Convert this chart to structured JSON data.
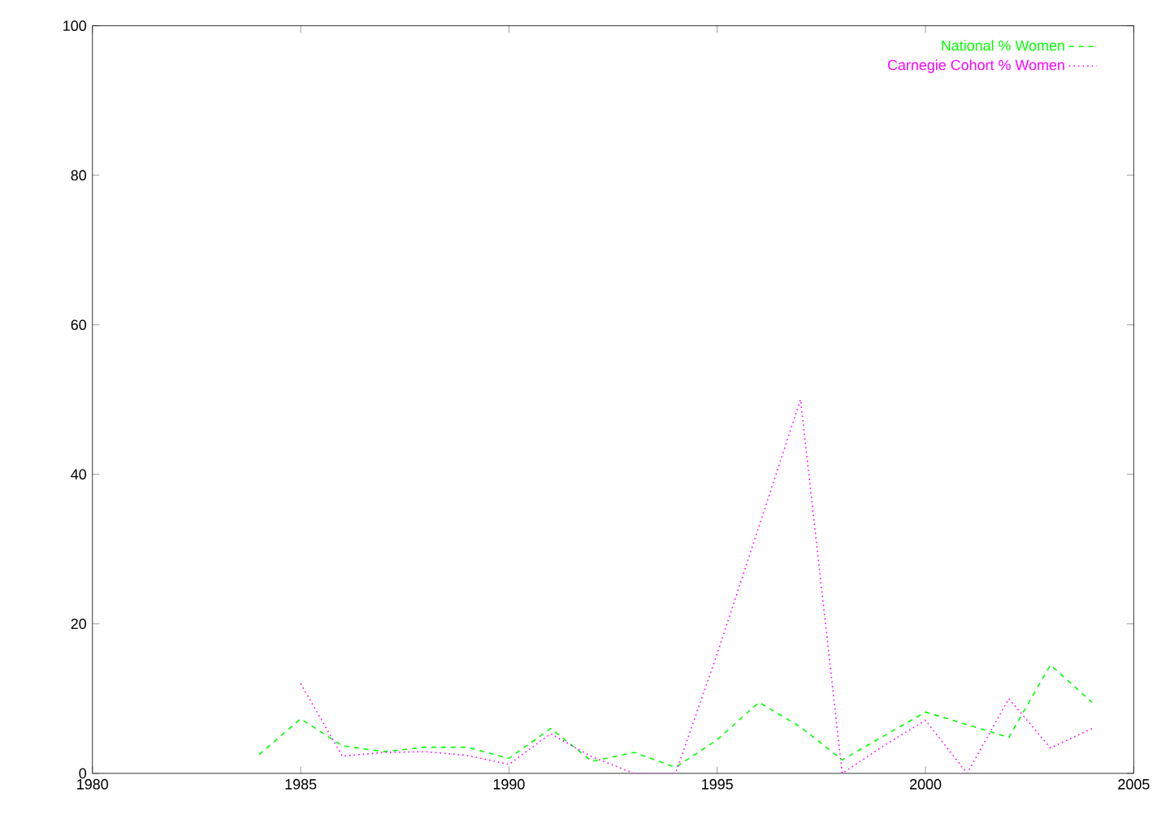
{
  "chart_data": {
    "type": "line",
    "x": [
      1984,
      1985,
      1986,
      1987,
      1988,
      1989,
      1990,
      1991,
      1992,
      1993,
      1994,
      1995,
      1996,
      1997,
      1998,
      1999,
      2000,
      2001,
      2002,
      2003,
      2004
    ],
    "series": [
      {
        "name": "National % Women",
        "color": "#00ff00",
        "line_style": "dashed",
        "values": [
          2.5,
          7.3,
          3.7,
          2.9,
          3.5,
          3.5,
          2.0,
          6.0,
          1.6,
          2.8,
          0.8,
          4.5,
          9.5,
          6.2,
          1.8,
          5.0,
          8.2,
          6.5,
          4.8,
          14.5,
          9.5
        ]
      },
      {
        "name": "Carnegie Cohort % Women",
        "color": "#ff00ff",
        "line_style": "dotted",
        "values": [
          null,
          12,
          2.3,
          2.8,
          2.9,
          2.4,
          1.2,
          5.3,
          2.2,
          0,
          0,
          16,
          33,
          50,
          0,
          3.7,
          7.1,
          0,
          10,
          3.4,
          6
        ]
      }
    ],
    "xlim": [
      1980,
      2005
    ],
    "ylim": [
      0,
      100
    ],
    "xticks": [
      1980,
      1985,
      1990,
      1995,
      2000,
      2005
    ],
    "yticks": [
      0,
      20,
      40,
      60,
      80,
      100
    ],
    "legend": "top right",
    "grid": false,
    "marker": "none"
  }
}
